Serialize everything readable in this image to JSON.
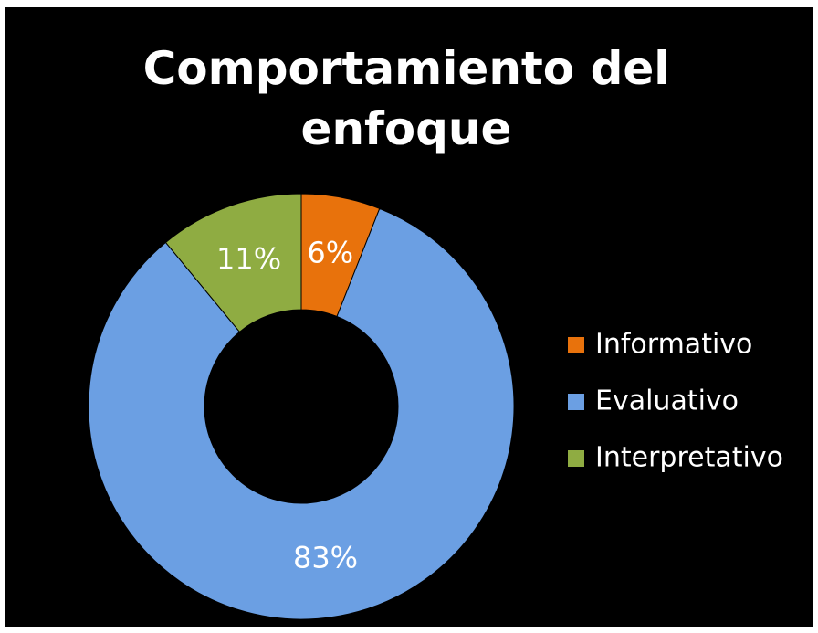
{
  "chart_data": {
    "type": "doughnut",
    "title": "Comportamiento del enfoque",
    "categories": [
      "Informativo",
      "Evaluativo",
      "Interpretativo"
    ],
    "values": [
      6,
      83,
      11
    ],
    "value_labels": [
      "6%",
      "83%",
      "11%"
    ],
    "colors": [
      "#e8720c",
      "#6b9fe3",
      "#8fac42"
    ],
    "legend": "right"
  }
}
